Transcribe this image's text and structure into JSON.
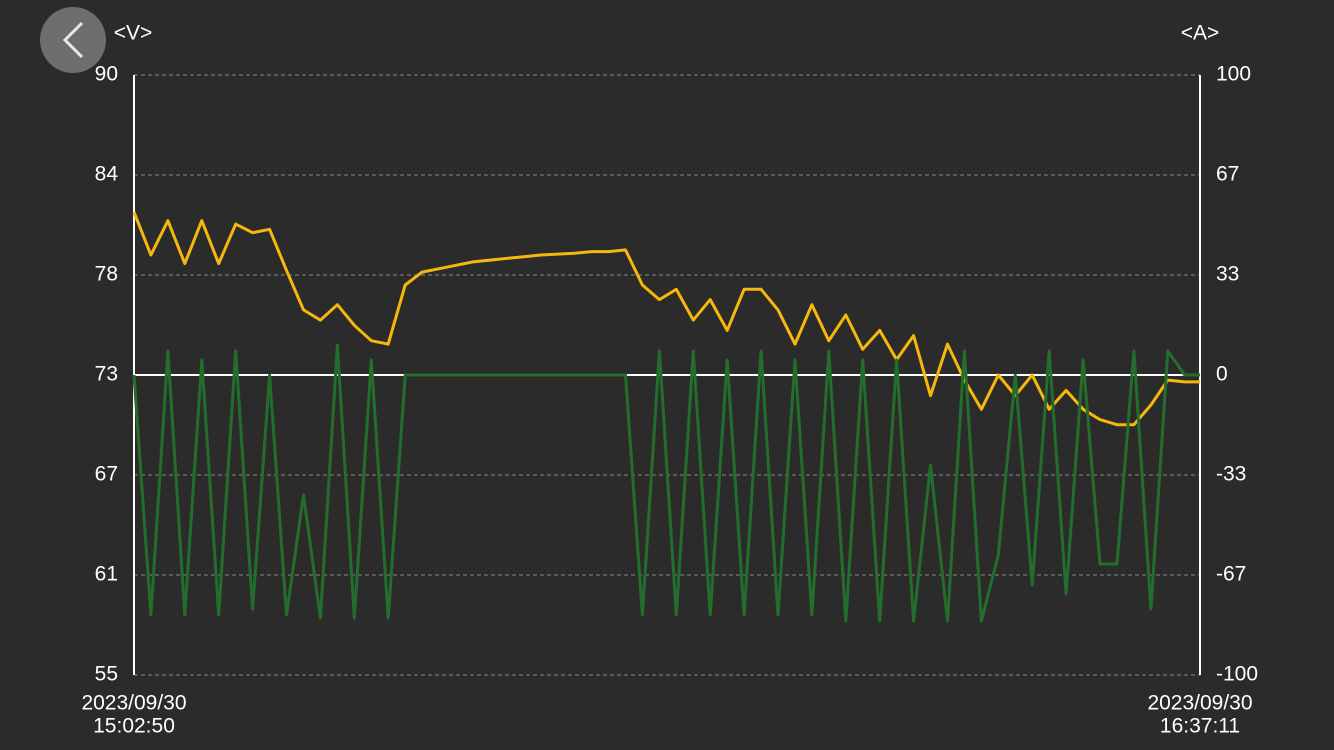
{
  "chart_data": {
    "type": "line",
    "y_label": "<V>",
    "y2_label": "<A>",
    "ylim": [
      55,
      90
    ],
    "yticks": [
      55,
      {
        "value": 60.833,
        "label": "61"
      },
      {
        "value": 66.667,
        "label": "67"
      },
      {
        "value": 72.5,
        "label": "73"
      },
      {
        "value": 78.333,
        "label": "78"
      },
      {
        "value": 84.167,
        "label": "84"
      },
      90
    ],
    "y2lim": [
      -100,
      100
    ],
    "y2ticks": [
      -100,
      {
        "value": -66.667,
        "label": "-67"
      },
      {
        "value": -33.333,
        "label": "-33"
      },
      0,
      {
        "value": 33.333,
        "label": "33"
      },
      {
        "value": 66.667,
        "label": "67"
      },
      100
    ],
    "xlim": [
      "2023/09/30 15:02:50",
      "2023/09/30 16:37:11"
    ],
    "xticks": [
      {
        "value": "2023/09/30 15:02:50",
        "label": [
          "2023/09/30",
          "15:02:50"
        ]
      },
      {
        "value": "2023/09/30 16:37:11",
        "label": [
          "2023/09/30",
          "16:37:11"
        ]
      }
    ],
    "grid": true,
    "x": [
      "2023/09/30 15:02:50",
      "2023/09/30 15:04:20",
      "2023/09/30 15:05:50",
      "2023/09/30 15:07:20",
      "2023/09/30 15:08:50",
      "2023/09/30 15:10:20",
      "2023/09/30 15:11:50",
      "2023/09/30 15:13:20",
      "2023/09/30 15:14:50",
      "2023/09/30 15:16:20",
      "2023/09/30 15:17:50",
      "2023/09/30 15:19:20",
      "2023/09/30 15:20:50",
      "2023/09/30 15:22:20",
      "2023/09/30 15:23:50",
      "2023/09/30 15:25:20",
      "2023/09/30 15:26:50",
      "2023/09/30 15:28:20",
      "2023/09/30 15:29:50",
      "2023/09/30 15:31:20",
      "2023/09/30 15:32:50",
      "2023/09/30 15:34:20",
      "2023/09/30 15:35:50",
      "2023/09/30 15:37:20",
      "2023/09/30 15:38:50",
      "2023/09/30 15:40:20",
      "2023/09/30 15:41:50",
      "2023/09/30 15:43:20",
      "2023/09/30 15:44:50",
      "2023/09/30 15:46:20",
      "2023/09/30 15:47:50",
      "2023/09/30 15:49:20",
      "2023/09/30 15:50:50",
      "2023/09/30 15:52:20",
      "2023/09/30 15:53:50",
      "2023/09/30 15:55:20",
      "2023/09/30 15:56:50",
      "2023/09/30 15:58:20",
      "2023/09/30 15:59:50",
      "2023/09/30 16:01:20",
      "2023/09/30 16:02:50",
      "2023/09/30 16:04:20",
      "2023/09/30 16:05:50",
      "2023/09/30 16:07:20",
      "2023/09/30 16:08:50",
      "2023/09/30 16:10:20",
      "2023/09/30 16:11:50",
      "2023/09/30 16:13:20",
      "2023/09/30 16:14:50",
      "2023/09/30 16:16:20",
      "2023/09/30 16:17:50",
      "2023/09/30 16:19:20",
      "2023/09/30 16:20:50",
      "2023/09/30 16:22:20",
      "2023/09/30 16:23:50",
      "2023/09/30 16:25:20",
      "2023/09/30 16:26:50",
      "2023/09/30 16:28:20",
      "2023/09/30 16:29:50",
      "2023/09/30 16:31:20",
      "2023/09/30 16:32:50",
      "2023/09/30 16:34:20",
      "2023/09/30 16:35:50",
      "2023/09/30 16:37:11"
    ],
    "series": [
      {
        "color": "#f6b80c",
        "values": [
          82.0,
          79.5,
          81.5,
          79.0,
          81.5,
          79.0,
          81.3,
          80.8,
          81.0,
          78.6,
          76.3,
          75.7,
          76.6,
          75.4,
          74.5,
          74.3,
          77.75,
          78.5,
          78.7,
          78.9,
          79.1,
          79.2,
          79.3,
          79.4,
          79.5,
          79.55,
          79.6,
          79.7,
          79.7,
          79.8,
          77.75,
          76.9,
          77.5,
          75.7,
          76.9,
          75.1,
          77.5,
          77.5,
          76.3,
          74.3,
          76.6,
          74.5,
          76.0,
          74.0,
          75.1,
          73.4,
          74.8,
          71.3,
          74.3,
          72.2,
          70.5,
          72.5,
          71.3,
          72.5,
          70.5,
          71.6,
          70.5,
          69.9,
          69.6,
          69.6,
          70.75,
          72.2,
          72.1,
          72.1
        ]
      },
      {
        "color": "#236e2c",
        "axis": "y2",
        "values": [
          0,
          -80,
          8,
          -80,
          5,
          -80,
          8,
          -78,
          0,
          -80,
          -40,
          -81,
          10,
          -81,
          5,
          -81,
          0,
          0,
          0,
          0,
          0,
          0,
          0,
          0,
          0,
          0,
          0,
          0,
          0,
          0,
          -80,
          8,
          -80,
          8,
          -80,
          5,
          -80,
          8,
          -80,
          5,
          -80,
          8,
          -82,
          5,
          -82,
          5,
          -82,
          -30,
          -82,
          8,
          -82,
          -60,
          0,
          -70,
          8,
          -73,
          5,
          -63,
          -63,
          8,
          -78,
          8,
          0,
          0
        ]
      }
    ]
  }
}
